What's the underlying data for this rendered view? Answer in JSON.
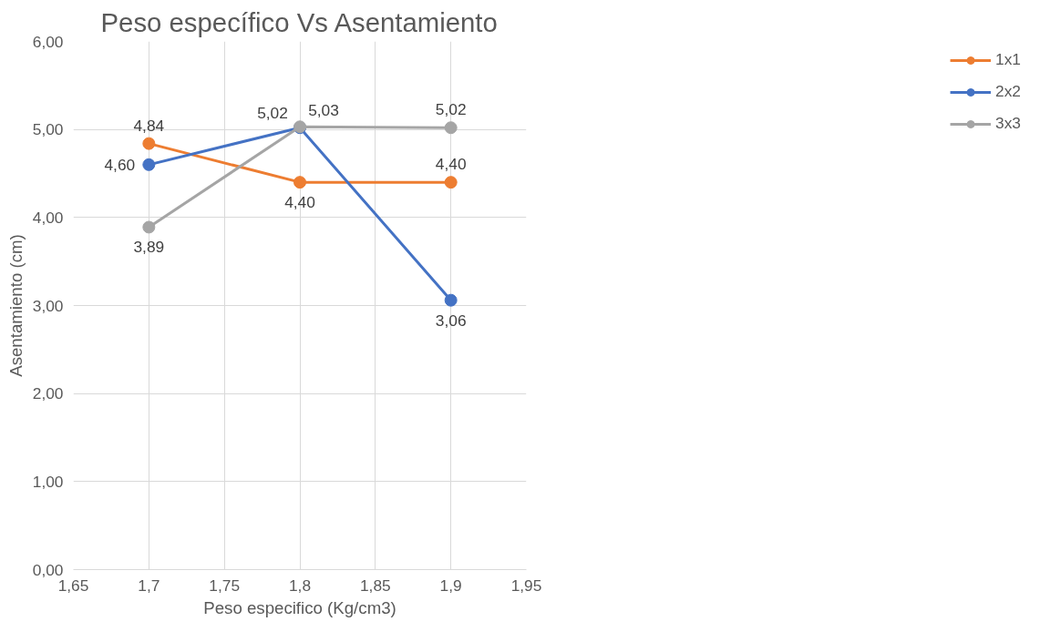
{
  "chart_data": {
    "type": "line",
    "title": "Peso específico Vs Asentamiento",
    "xlabel": "Peso especifico (Kg/cm3)",
    "ylabel": "Asentamiento (cm)",
    "x": [
      1.7,
      1.8,
      1.9
    ],
    "series": [
      {
        "name": "1x1",
        "color": "#ed7d31",
        "values": [
          4.84,
          4.4,
          4.4
        ],
        "value_labels": [
          "4,84",
          "4,40",
          "4,40"
        ]
      },
      {
        "name": "2x2",
        "color": "#4472c4",
        "values": [
          4.6,
          5.02,
          3.06
        ],
        "value_labels": [
          "4,60",
          "5,02",
          "3,06"
        ]
      },
      {
        "name": "3x3",
        "color": "#a5a5a5",
        "values": [
          3.89,
          5.03,
          5.02
        ],
        "value_labels": [
          "3,89",
          "5,03",
          "5,02"
        ]
      }
    ],
    "xlim": [
      1.65,
      1.95
    ],
    "xticks": [
      {
        "value": 1.65,
        "label": "1,65"
      },
      {
        "value": 1.7,
        "label": "1,7"
      },
      {
        "value": 1.75,
        "label": "1,75"
      },
      {
        "value": 1.8,
        "label": "1,8"
      },
      {
        "value": 1.85,
        "label": "1,85"
      },
      {
        "value": 1.9,
        "label": "1,9"
      },
      {
        "value": 1.95,
        "label": "1,95"
      }
    ],
    "ylim": [
      0,
      6
    ],
    "yticks": [
      {
        "value": 0,
        "label": "0,00"
      },
      {
        "value": 1,
        "label": "1,00"
      },
      {
        "value": 2,
        "label": "2,00"
      },
      {
        "value": 3,
        "label": "3,00"
      },
      {
        "value": 4,
        "label": "4,00"
      },
      {
        "value": 5,
        "label": "5,00"
      },
      {
        "value": 6,
        "label": "6,00"
      }
    ],
    "grid": true,
    "legend": "right",
    "marker": "circle",
    "line_style": "solid"
  }
}
